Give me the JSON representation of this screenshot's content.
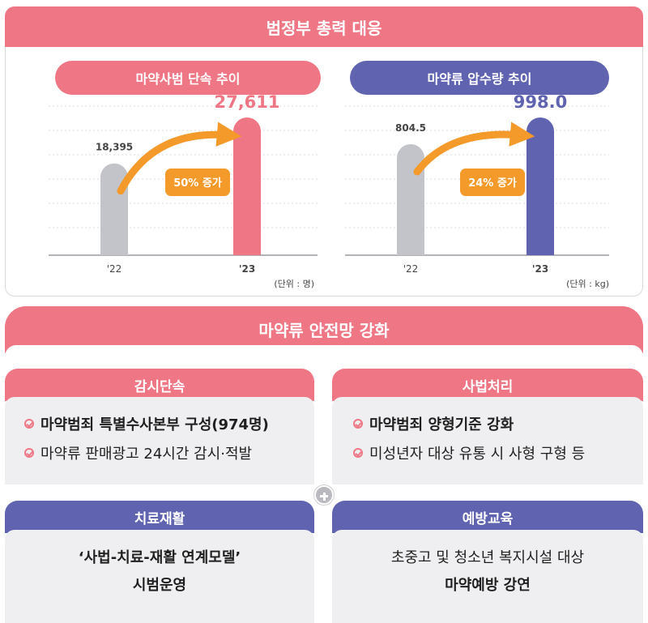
{
  "top": {
    "title": "범정부 총력 대응",
    "left_pill": "마약사범 단속 추이",
    "right_pill": "마약류 압수량 추이"
  },
  "chart_data": [
    {
      "type": "bar",
      "title": "마약사범 단속 추이",
      "categories": [
        "'22",
        "'23"
      ],
      "values": [
        18395,
        27611
      ],
      "value_labels": [
        "18,395",
        "27,611"
      ],
      "annotation": "50% 증가",
      "unit_label": "(단위 : 명)",
      "ylim": [
        0,
        30000
      ],
      "colors": [
        "#c3c4c9",
        "#ef7785"
      ],
      "label_colors": [
        "#444444",
        "#ef7785"
      ]
    },
    {
      "type": "bar",
      "title": "마약류 압수량 추이",
      "categories": [
        "'22",
        "'23"
      ],
      "values": [
        804.5,
        998.0
      ],
      "value_labels": [
        "804.5",
        "998.0"
      ],
      "annotation": "24% 증가",
      "unit_label": "(단위 : kg)",
      "ylim": [
        0,
        1100
      ],
      "colors": [
        "#c3c4c9",
        "#5f63b0"
      ],
      "label_colors": [
        "#444444",
        "#5f63b0"
      ]
    }
  ],
  "middle": {
    "title": "마약류 안전망 강화"
  },
  "cards": {
    "surveillance": {
      "title": "감시단속",
      "items": [
        "마약범죄 특별수사본부 구성(974명)",
        "마약류 판매광고 24시간 감시·적발"
      ]
    },
    "judicial": {
      "title": "사법처리",
      "items": [
        "마약범죄 양형기준 강화",
        "미성년자 대상 유통 시 사형 구형 등"
      ]
    },
    "treatment": {
      "title": "치료재활",
      "line1": "‘사법-치료-재활 연계모델’",
      "line2": "시범운영"
    },
    "prevention": {
      "title": "예방교육",
      "line1": "초중고 및 청소년 복지시설 대상",
      "line2": "마약예방 강연"
    }
  },
  "colors": {
    "accent_red": "#ef7785",
    "accent_blue": "#5f63b0",
    "arrow": "#f39a2a",
    "bar_gray": "#c3c4c9"
  }
}
